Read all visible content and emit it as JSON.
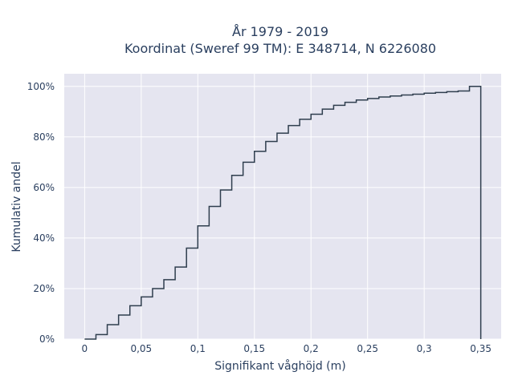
{
  "colors": {
    "background": "#ffffff",
    "plot_background": "#e5e5f0",
    "grid": "#ffffff",
    "line": "#2f3e4e",
    "text": "#2a3f5f"
  },
  "chart_data": {
    "type": "line",
    "line_shape": "step-cumulative",
    "title": "År 1979 - 2019",
    "subtitle": "Koordinat (Sweref 99 TM): E 348714, N 6226080",
    "xlabel": "Signifikant våghöjd (m)",
    "ylabel": "Kumulativ andel",
    "xlim": [
      -0.018,
      0.368
    ],
    "ylim": [
      0,
      1.05
    ],
    "grid": true,
    "x_ticks": [
      {
        "value": 0,
        "label": "0"
      },
      {
        "value": 0.05,
        "label": "0,05"
      },
      {
        "value": 0.1,
        "label": "0,1"
      },
      {
        "value": 0.15,
        "label": "0,15"
      },
      {
        "value": 0.2,
        "label": "0,2"
      },
      {
        "value": 0.25,
        "label": "0,25"
      },
      {
        "value": 0.3,
        "label": "0,3"
      },
      {
        "value": 0.35,
        "label": "0,35"
      }
    ],
    "y_ticks": [
      {
        "value": 0,
        "label": "0%"
      },
      {
        "value": 0.2,
        "label": "20%"
      },
      {
        "value": 0.4,
        "label": "40%"
      },
      {
        "value": 0.6,
        "label": "60%"
      },
      {
        "value": 0.8,
        "label": "80%"
      },
      {
        "value": 1.0,
        "label": "100%"
      }
    ],
    "series": [
      {
        "x": [
          0,
          0.01,
          0.02,
          0.03,
          0.04,
          0.05,
          0.06,
          0.07,
          0.08,
          0.09,
          0.1,
          0.11,
          0.12,
          0.13,
          0.14,
          0.15,
          0.16,
          0.17,
          0.18,
          0.19,
          0.2,
          0.21,
          0.22,
          0.23,
          0.24,
          0.25,
          0.26,
          0.27,
          0.28,
          0.29,
          0.3,
          0.31,
          0.32,
          0.33,
          0.34,
          0.35
        ],
        "y": [
          0.0,
          0.018,
          0.057,
          0.095,
          0.132,
          0.167,
          0.2,
          0.235,
          0.285,
          0.36,
          0.448,
          0.525,
          0.59,
          0.648,
          0.7,
          0.743,
          0.782,
          0.815,
          0.845,
          0.87,
          0.89,
          0.91,
          0.925,
          0.937,
          0.946,
          0.952,
          0.958,
          0.962,
          0.966,
          0.969,
          0.973,
          0.976,
          0.979,
          0.982,
          1.0,
          0.0
        ]
      }
    ]
  }
}
